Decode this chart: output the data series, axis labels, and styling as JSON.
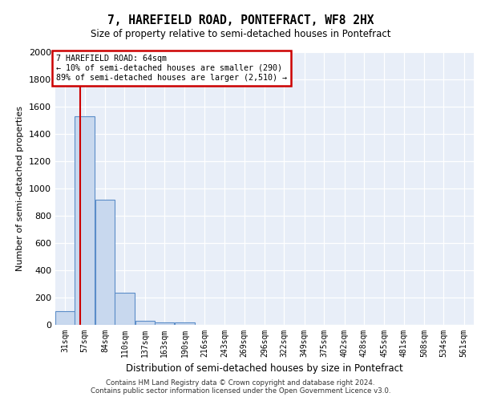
{
  "title_line1": "7, HAREFIELD ROAD, PONTEFRACT, WF8 2HX",
  "title_line2": "Size of property relative to semi-detached houses in Pontefract",
  "xlabel": "Distribution of semi-detached houses by size in Pontefract",
  "ylabel": "Number of semi-detached properties",
  "footer_line1": "Contains HM Land Registry data © Crown copyright and database right 2024.",
  "footer_line2": "Contains public sector information licensed under the Open Government Licence v3.0.",
  "bin_edges": [
    31,
    57,
    84,
    110,
    137,
    163,
    190,
    216,
    243,
    269,
    296,
    322,
    349,
    375,
    402,
    428,
    455,
    481,
    508,
    534,
    561
  ],
  "bar_heights": [
    100,
    1530,
    920,
    235,
    30,
    20,
    15,
    0,
    0,
    0,
    0,
    0,
    0,
    0,
    0,
    0,
    0,
    0,
    0,
    0
  ],
  "bar_color": "#c8d8ee",
  "bar_edge_color": "#5b8dc8",
  "vline_x": 64,
  "vline_color": "#cc0000",
  "annotation_text": "7 HAREFIELD ROAD: 64sqm\n← 10% of semi-detached houses are smaller (290)\n89% of semi-detached houses are larger (2,510) →",
  "annotation_box_color": "#ffffff",
  "annotation_edge_color": "#cc0000",
  "ylim": [
    0,
    2000
  ],
  "yticks": [
    0,
    200,
    400,
    600,
    800,
    1000,
    1200,
    1400,
    1600,
    1800,
    2000
  ],
  "plot_bg_color": "#e8eef8",
  "background_color": "#ffffff",
  "grid_color": "#ffffff"
}
